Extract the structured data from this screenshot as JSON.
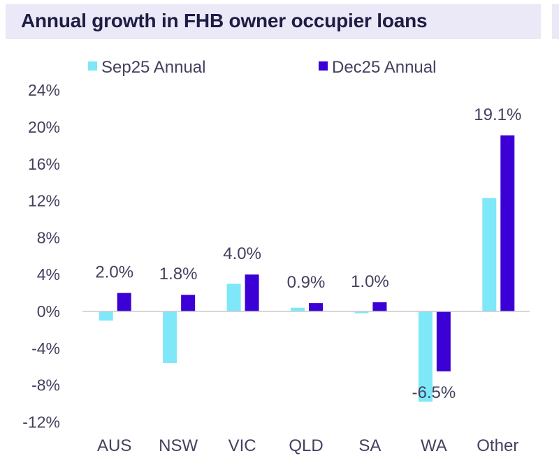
{
  "title": "Annual growth in FHB owner occupier loans",
  "colors": {
    "sep25": "#7ee8f8",
    "dec25": "#3b00d6",
    "axis": "#c8c8d0",
    "text": "#44405e",
    "title_bg": "#ebe9f7"
  },
  "chart_data": {
    "type": "bar",
    "title": "Annual growth in FHB owner occupier loans",
    "xlabel": "",
    "ylabel": "",
    "categories": [
      "AUS",
      "NSW",
      "VIC",
      "QLD",
      "SA",
      "WA",
      "Other"
    ],
    "series": [
      {
        "name": "Sep25 Annual",
        "values": [
          -1.0,
          -5.6,
          3.0,
          0.4,
          -0.2,
          -9.8,
          12.3
        ]
      },
      {
        "name": "Dec25 Annual",
        "values": [
          2.0,
          1.8,
          4.0,
          0.9,
          1.0,
          -6.5,
          19.1
        ]
      }
    ],
    "data_labels": [
      "2.0%",
      "1.8%",
      "4.0%",
      "0.9%",
      "1.0%",
      "-6.5%",
      "19.1%"
    ],
    "ylim": [
      -12,
      24
    ],
    "yticks": [
      24,
      20,
      16,
      12,
      8,
      4,
      0,
      -4,
      -8,
      -12
    ],
    "ytick_labels": [
      "24%",
      "20%",
      "16%",
      "12%",
      "8%",
      "4%",
      "0%",
      "-4%",
      "-8%",
      "-12%"
    ],
    "grid": false,
    "legend": "top"
  }
}
